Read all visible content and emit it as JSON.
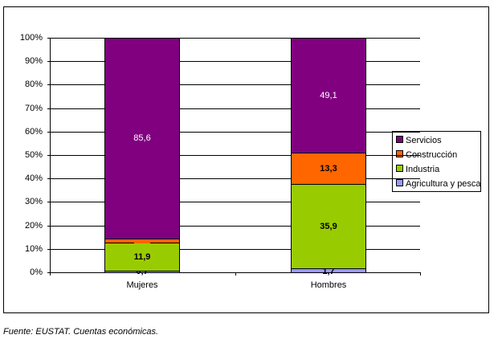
{
  "chart_data": {
    "type": "bar",
    "stacked": true,
    "percent_stacked": true,
    "title": "",
    "xlabel": "",
    "ylabel": "",
    "ylim": [
      0,
      100
    ],
    "categories": [
      "Mujeres",
      "Hombres"
    ],
    "y_ticks": [
      "0%",
      "10%",
      "20%",
      "30%",
      "40%",
      "50%",
      "60%",
      "70%",
      "80%",
      "90%",
      "100%"
    ],
    "grid": true,
    "legend_position": "right",
    "series": [
      {
        "name": "Agricultura y pesca",
        "color": "#9999FF",
        "values": [
          0.7,
          1.7
        ],
        "labels": [
          "0,7",
          "1,7"
        ]
      },
      {
        "name": "Industria",
        "color": "#99CC00",
        "values": [
          11.9,
          35.9
        ],
        "labels": [
          "11,9",
          "35,9"
        ]
      },
      {
        "name": "Construcción",
        "color": "#FF6600",
        "values": [
          1.9,
          13.3
        ],
        "labels": [
          "1,9",
          "13,3"
        ]
      },
      {
        "name": "Servicios",
        "color": "#800080",
        "values": [
          85.6,
          49.1
        ],
        "labels": [
          "85,6",
          "49,1"
        ]
      }
    ]
  },
  "legend": {
    "items": [
      {
        "label": "Servicios",
        "color": "#800080"
      },
      {
        "label": "Construcción",
        "color": "#FF6600"
      },
      {
        "label": "Industria",
        "color": "#99CC00"
      },
      {
        "label": "Agricultura y pesca",
        "color": "#9999FF"
      }
    ]
  },
  "source": "Fuente: EUSTAT. Cuentas económicas."
}
